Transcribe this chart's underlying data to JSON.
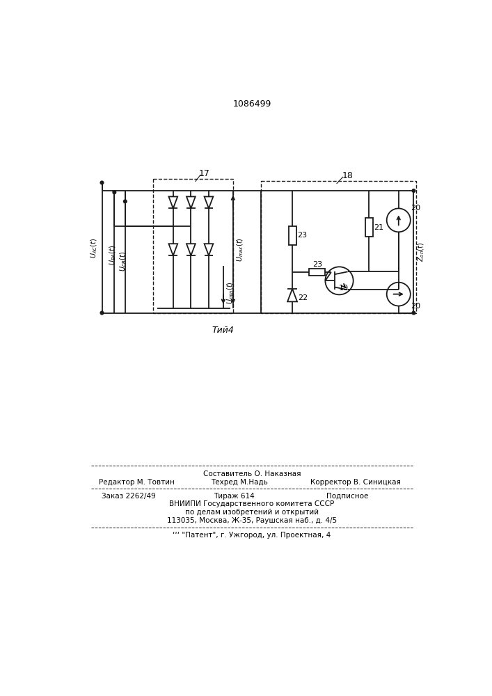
{
  "title": "1086499",
  "fig_label": "Τий4",
  "background_color": "#ffffff",
  "line_color": "#1a1a1a",
  "label_17": "17",
  "label_18": "18",
  "label_19": "19",
  "label_20": "20",
  "label_20b": "20",
  "label_21": "21",
  "label_22": "22",
  "label_23a": "23",
  "label_23b": "23",
  "text_uac": "$U_{AC}(t)$",
  "text_uba": "$U_{BA}(t)$",
  "text_ucb": "$U_{CB}(t)$",
  "text_umax": "$U_{max}(t)$",
  "text_umin": "$U_{min}(t)$",
  "text_zon": "$Z_{on}(t)$",
  "footer_composer": "Составитель О. Наказная",
  "footer_editor": "Редактор М. Товтин",
  "footer_tech": "Техред М.Надь",
  "footer_corrector": "Корректор В. Синицкая",
  "footer_order": "Заказ 2262/49",
  "footer_tirazh": "Тираж 614",
  "footer_podp": "Подписное",
  "footer_vniip": "ВНИИПИ Государственного комитета СССР",
  "footer_po": "по делам изобретений и открытий",
  "footer_addr": "113035, Москва, Ж-35, Раушская наб., д. 4/5",
  "footer_patent": "‘‘‘ \"Патент\", г. Ужгород, ул. Проектная, 4"
}
